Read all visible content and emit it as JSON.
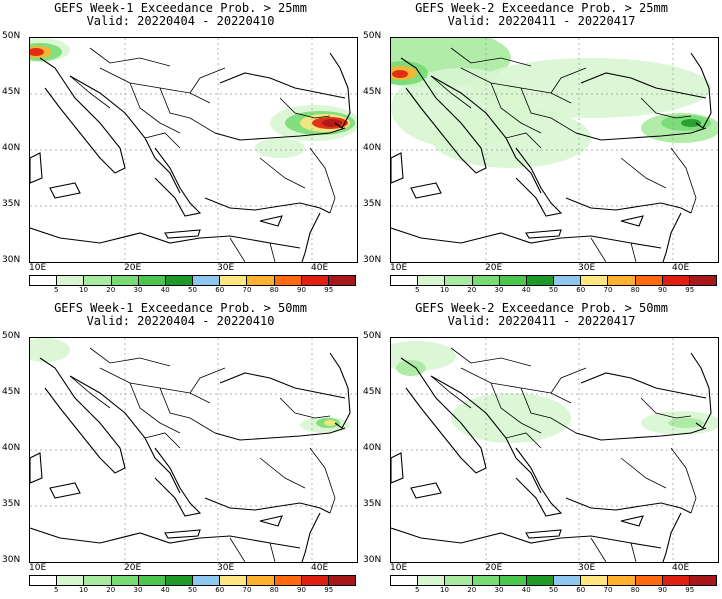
{
  "panels": [
    {
      "title": "GEFS Week-1 Exceedance Prob. > 25mm",
      "valid": "Valid: 20220404 - 20220410"
    },
    {
      "title": "GEFS Week-2 Exceedance Prob. > 25mm",
      "valid": "Valid: 20220411 - 20220417"
    },
    {
      "title": "GEFS Week-1 Exceedance Prob. > 50mm",
      "valid": "Valid: 20220404 - 20220410"
    },
    {
      "title": "GEFS Week-2 Exceedance Prob. > 50mm",
      "valid": "Valid: 20220411 - 20220417"
    }
  ],
  "lat_labels": [
    "50N",
    "45N",
    "40N",
    "35N",
    "30N"
  ],
  "lon_labels": [
    "10E",
    "20E",
    "30E",
    "40E"
  ],
  "colorbar": {
    "ticks": [
      "5",
      "10",
      "20",
      "30",
      "40",
      "50",
      "60",
      "70",
      "80",
      "90",
      "95"
    ],
    "colors": [
      "#ffffff",
      "#d7f6d0",
      "#a8eaa0",
      "#78dc74",
      "#4cc64c",
      "#1f9a28",
      "#8fc8ee",
      "#ffe680",
      "#ffb02e",
      "#ff6a10",
      "#e02010",
      "#a81818"
    ]
  }
}
